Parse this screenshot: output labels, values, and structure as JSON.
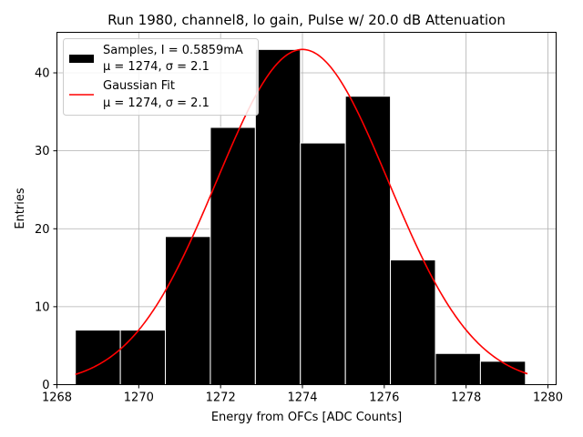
{
  "chart_data": {
    "type": "bar",
    "title": "Run 1980, channel8, lo gain, Pulse w/ 20.0 dB Attenuation",
    "xlabel": "Energy from OFCs [ADC Counts]",
    "ylabel": "Entries",
    "xlim": [
      1268.0,
      1280.2
    ],
    "ylim": [
      0,
      45.2
    ],
    "xticks": [
      1268,
      1270,
      1272,
      1274,
      1276,
      1278,
      1280
    ],
    "yticks": [
      0,
      10,
      20,
      30,
      40
    ],
    "grid": true,
    "legend_position": "top-left",
    "bin_edges": [
      1268.45,
      1269.55,
      1270.65,
      1271.75,
      1272.85,
      1273.95,
      1275.05,
      1276.15,
      1277.25,
      1278.35,
      1279.45
    ],
    "values": [
      7,
      7,
      19,
      33,
      43,
      31,
      37,
      16,
      4,
      3
    ],
    "fit": {
      "mu": 1274.0,
      "sigma": 2.1,
      "amplitude": 43,
      "x_range": [
        1268.45,
        1279.5
      ]
    },
    "series": [
      {
        "name": "Samples, I = 0.5859mA",
        "stats": "μ = 1274, σ = 2.1",
        "color": "#000000"
      },
      {
        "name": "Gaussian Fit",
        "stats": "μ = 1274, σ = 2.1",
        "color": "#ff0000"
      }
    ]
  }
}
